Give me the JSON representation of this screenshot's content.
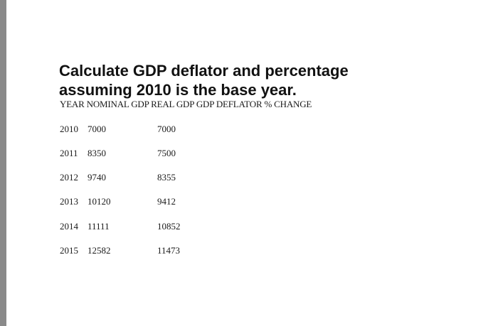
{
  "title": {
    "line1": "Calculate GDP deflator and percentage",
    "line2": "assuming 2010 is the base year."
  },
  "table": {
    "header": "YEAR NOMINAL GDP REAL GDP GDP DEFLATOR % CHANGE",
    "rows": [
      {
        "year": "2010",
        "nominal": "7000",
        "real": "7000"
      },
      {
        "year": "2011",
        "nominal": "8350",
        "real": "7500"
      },
      {
        "year": "2012",
        "nominal": "9740",
        "real": "8355"
      },
      {
        "year": "2013",
        "nominal": "10120",
        "real": "9412"
      },
      {
        "year": "2014",
        "nominal": "11111",
        "real": "10852"
      },
      {
        "year": "2015",
        "nominal": "12582",
        "real": "11473"
      }
    ]
  }
}
